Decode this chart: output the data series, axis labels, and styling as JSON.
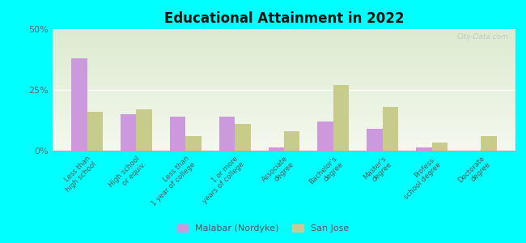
{
  "title": "Educational Attainment in 2022",
  "categories": [
    "Less than\nhigh school",
    "High school\nor equiv.",
    "Less than\n1 year of college",
    "1 or more\nyears of college",
    "Associate\ndegree",
    "Bachelor's\ndegree",
    "Master's\ndegree",
    "Profess.\nschool degree",
    "Doctorate\ndegree"
  ],
  "malabar_values": [
    38,
    15,
    14,
    14,
    1.5,
    12,
    9,
    1.5,
    0
  ],
  "sanjose_values": [
    16,
    17,
    6,
    11,
    8,
    27,
    18,
    3.5,
    6
  ],
  "malabar_color": "#cc99dd",
  "sanjose_color": "#c8cc8a",
  "background_color": "#00ffff",
  "plot_bg": "#eef3e2",
  "ylim": [
    0,
    50
  ],
  "yticks": [
    0,
    25,
    50
  ],
  "ytick_labels": [
    "0%",
    "25%",
    "50%"
  ],
  "legend_malabar": "Malabar (Nordyke)",
  "legend_sanjose": "San Jose",
  "watermark": "City-Data.com",
  "fig_width": 6.5,
  "fig_height": 3.0,
  "dpi": 100
}
